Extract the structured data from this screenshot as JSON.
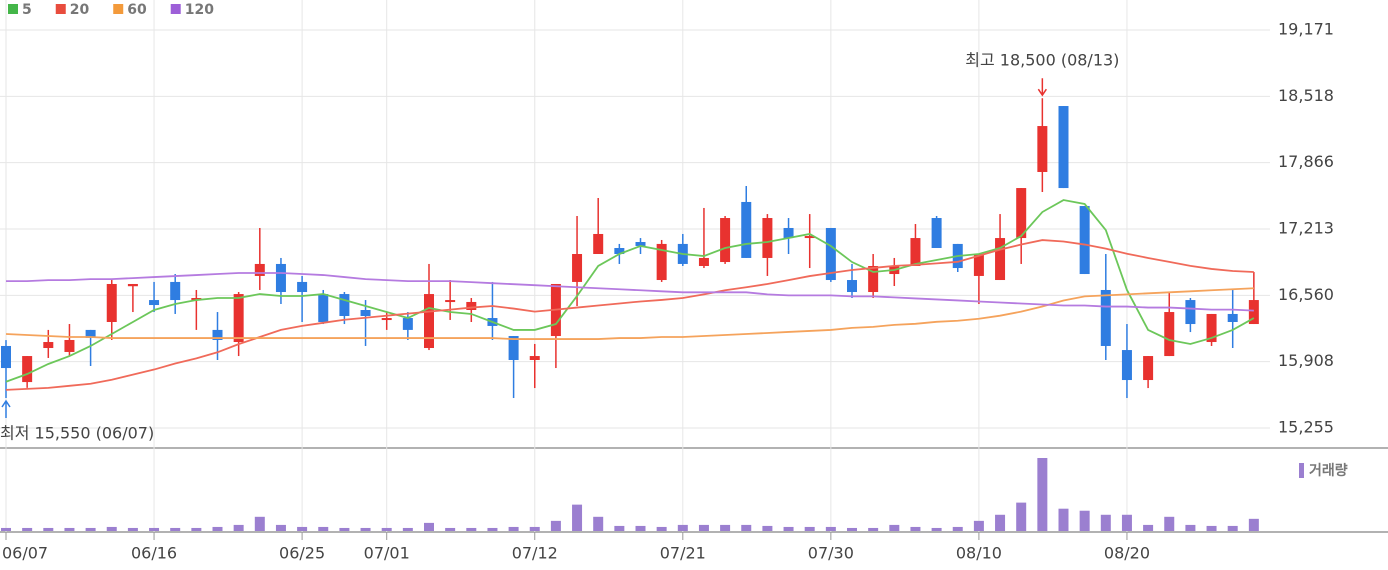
{
  "chart_data": {
    "type": "candlestick",
    "legend": [
      {
        "name": "5",
        "color": "#44b649"
      },
      {
        "name": "20",
        "color": "#e84c3d"
      },
      {
        "name": "60",
        "color": "#f39a3b"
      },
      {
        "name": "120",
        "color": "#9d5fd8"
      }
    ],
    "categories": [
      "06/07",
      null,
      null,
      null,
      null,
      null,
      null,
      "06/16",
      null,
      null,
      null,
      null,
      null,
      null,
      "06/25",
      null,
      null,
      null,
      "07/01",
      null,
      null,
      null,
      null,
      null,
      null,
      "07/12",
      null,
      null,
      null,
      null,
      null,
      null,
      "07/21",
      null,
      null,
      null,
      null,
      null,
      null,
      "07/30",
      null,
      null,
      null,
      null,
      null,
      null,
      "08/10",
      null,
      null,
      null,
      null,
      null,
      null,
      "08/20",
      null,
      null,
      null,
      null,
      null,
      null
    ],
    "ohlc": {
      "up_color": "#e8322f",
      "down_color": "#2f7de1",
      "open": [
        16062,
        15707,
        16042,
        16003,
        16220,
        16298,
        16650,
        16514,
        16692,
        16514,
        16220,
        16101,
        16751,
        16869,
        16692,
        16573,
        16573,
        16416,
        16318,
        16337,
        16042,
        16495,
        16416,
        16337,
        16160,
        15924,
        16160,
        16692,
        16967,
        17026,
        17085,
        16711,
        17066,
        16849,
        16888,
        17479,
        16928,
        17223,
        17124,
        17223,
        16711,
        16593,
        16770,
        16849,
        17321,
        17066,
        16751,
        16711,
        17124,
        17774,
        18423,
        17439,
        16613,
        16022,
        15727,
        15963,
        16514,
        16101,
        16377,
        16278
      ],
      "high": [
        16120,
        15963,
        16220,
        16278,
        16220,
        16711,
        16672,
        16692,
        16770,
        16613,
        16396,
        16593,
        17223,
        16928,
        16751,
        16613,
        16593,
        16514,
        16396,
        16396,
        16869,
        16711,
        16534,
        16692,
        16160,
        16082,
        16672,
        17341,
        17518,
        17066,
        17124,
        17105,
        17164,
        17420,
        17341,
        17636,
        17360,
        17321,
        17360,
        17223,
        16869,
        16967,
        16928,
        17262,
        17341,
        17066,
        16967,
        17360,
        17616,
        18500,
        18423,
        17439,
        16967,
        16278,
        15963,
        16593,
        16534,
        16377,
        16613,
        16790
      ],
      "low": [
        15550,
        15650,
        15944,
        15963,
        15865,
        16121,
        16396,
        16396,
        16377,
        16220,
        15924,
        15963,
        16613,
        16475,
        16298,
        16278,
        16278,
        16062,
        16220,
        16121,
        16022,
        16318,
        16298,
        16121,
        15550,
        15648,
        15845,
        16455,
        16967,
        16869,
        16967,
        16692,
        16849,
        16829,
        16869,
        16928,
        16751,
        16967,
        16829,
        16692,
        16534,
        16534,
        16652,
        16849,
        17026,
        16790,
        16475,
        16711,
        16869,
        17577,
        17616,
        16770,
        15924,
        15550,
        15648,
        15963,
        16199,
        16062,
        16042,
        16278
      ],
      "close": [
        15845,
        15963,
        16101,
        16121,
        16141,
        16672,
        16672,
        16465,
        16514,
        16534,
        16121,
        16573,
        16869,
        16593,
        16593,
        16298,
        16357,
        16357,
        16337,
        16220,
        16573,
        16514,
        16495,
        16259,
        15924,
        15963,
        16672,
        16967,
        17164,
        16967,
        17046,
        17066,
        16869,
        16928,
        17321,
        16928,
        17321,
        17124,
        17144,
        16711,
        16593,
        16849,
        16849,
        17124,
        17026,
        16829,
        16967,
        17124,
        17616,
        18226,
        17616,
        16770,
        16062,
        15727,
        15963,
        16396,
        16278,
        16377,
        16298,
        16514
      ]
    },
    "series": [
      {
        "name": "5",
        "color": "#6cc75a",
        "values": [
          15710,
          15786,
          15885,
          15963,
          16062,
          16180,
          16298,
          16416,
          16475,
          16514,
          16534,
          16534,
          16573,
          16554,
          16554,
          16573,
          16514,
          16455,
          16396,
          16337,
          16436,
          16396,
          16377,
          16298,
          16220,
          16220,
          16278,
          16554,
          16849,
          16967,
          17046,
          17006,
          16967,
          16947,
          17026,
          17066,
          17085,
          17124,
          17164,
          17046,
          16888,
          16790,
          16810,
          16869,
          16908,
          16947,
          16967,
          17026,
          17144,
          17380,
          17498,
          17459,
          17203,
          16613,
          16220,
          16121,
          16082,
          16141,
          16220,
          16337
        ]
      },
      {
        "name": "20",
        "color": "#f06a5a",
        "values": [
          15630,
          15640,
          15650,
          15670,
          15690,
          15730,
          15780,
          15830,
          15890,
          15940,
          16000,
          16080,
          16150,
          16220,
          16260,
          16290,
          16320,
          16340,
          16360,
          16380,
          16400,
          16420,
          16440,
          16455,
          16430,
          16400,
          16420,
          16440,
          16460,
          16480,
          16500,
          16515,
          16534,
          16570,
          16610,
          16640,
          16672,
          16710,
          16750,
          16780,
          16810,
          16830,
          16850,
          16860,
          16875,
          16890,
          16950,
          17010,
          17060,
          17104,
          17090,
          17060,
          17020,
          16970,
          16928,
          16890,
          16850,
          16820,
          16800,
          16790
        ]
      },
      {
        "name": "60",
        "color": "#f5a35c",
        "values": [
          16180,
          16170,
          16160,
          16150,
          16150,
          16140,
          16140,
          16140,
          16140,
          16140,
          16140,
          16140,
          16140,
          16140,
          16140,
          16140,
          16140,
          16140,
          16140,
          16140,
          16140,
          16140,
          16140,
          16140,
          16130,
          16130,
          16130,
          16130,
          16130,
          16140,
          16140,
          16150,
          16150,
          16160,
          16170,
          16180,
          16190,
          16200,
          16210,
          16220,
          16240,
          16250,
          16270,
          16280,
          16300,
          16310,
          16330,
          16360,
          16400,
          16450,
          16510,
          16550,
          16560,
          16570,
          16580,
          16590,
          16600,
          16610,
          16620,
          16630
        ]
      },
      {
        "name": "120",
        "color": "#b57be0",
        "values": [
          16700,
          16700,
          16710,
          16710,
          16720,
          16720,
          16730,
          16740,
          16750,
          16760,
          16770,
          16780,
          16780,
          16780,
          16770,
          16760,
          16740,
          16720,
          16710,
          16700,
          16700,
          16700,
          16690,
          16680,
          16670,
          16660,
          16650,
          16640,
          16630,
          16620,
          16610,
          16600,
          16590,
          16590,
          16590,
          16590,
          16570,
          16560,
          16560,
          16560,
          16550,
          16550,
          16540,
          16530,
          16520,
          16510,
          16500,
          16490,
          16480,
          16470,
          16460,
          16460,
          16450,
          16450,
          16440,
          16440,
          16430,
          16420,
          16420,
          16410
        ]
      }
    ],
    "volume": {
      "name": "거래량",
      "color": "#9b7fd0",
      "values": [
        3,
        3,
        3,
        3,
        3,
        4,
        3,
        3,
        3,
        3,
        4,
        6,
        14,
        6,
        4,
        4,
        3,
        3,
        3,
        3,
        8,
        3,
        3,
        3,
        4,
        4,
        10,
        26,
        14,
        5,
        5,
        4,
        6,
        6,
        6,
        6,
        5,
        4,
        4,
        4,
        3,
        3,
        6,
        4,
        3,
        4,
        10,
        16,
        28,
        72,
        22,
        20,
        16,
        16,
        6,
        14,
        6,
        5,
        5,
        12
      ]
    },
    "annotations": [
      {
        "text": "최고 18,500 (08/13)",
        "value": 18500,
        "kind": "high",
        "color": "#e8322f"
      },
      {
        "text": "최저 15,550 (06/07)",
        "value": 15550,
        "kind": "low",
        "color": "#2f7de1"
      }
    ],
    "ylim": [
      15255,
      19171
    ],
    "yticks": [
      {
        "value": 15255,
        "label": "15,255"
      },
      {
        "value": 15908,
        "label": "15,908"
      },
      {
        "value": 16560,
        "label": "16,560"
      },
      {
        "value": 17213,
        "label": "17,213"
      },
      {
        "value": 17866,
        "label": "17,866"
      },
      {
        "value": 18518,
        "label": "18,518"
      },
      {
        "value": 19171,
        "label": "19,171"
      }
    ],
    "grid": true
  }
}
